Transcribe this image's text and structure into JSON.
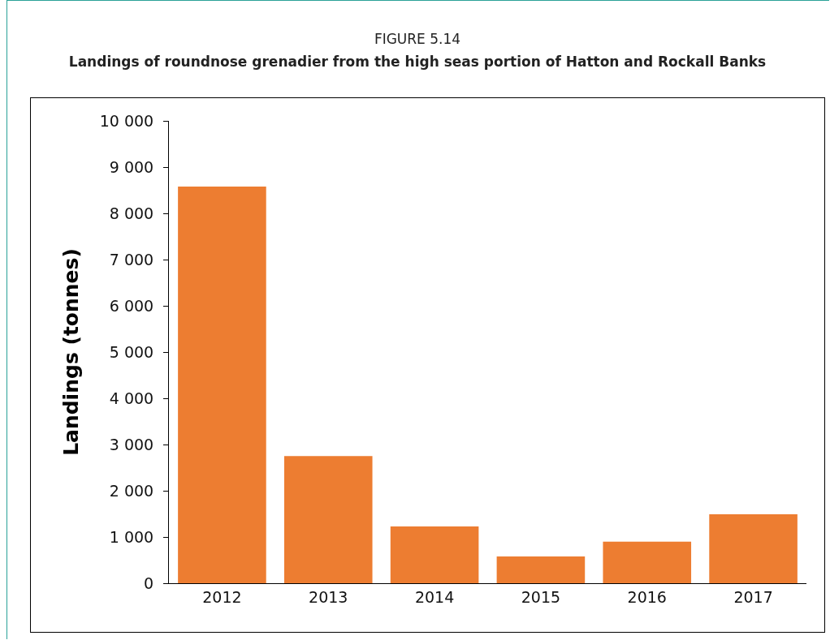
{
  "chart_data": {
    "type": "bar",
    "title": "FIGURE 5.14",
    "subtitle": "Landings of roundnose grenadier from the high seas portion of Hatton and Rockall Banks",
    "ylabel": "Landings (tonnes)",
    "categories": [
      "2012",
      "2013",
      "2014",
      "2015",
      "2016",
      "2017"
    ],
    "values": [
      8580,
      2750,
      1230,
      580,
      900,
      1490
    ],
    "color": "#ed7d31",
    "ylim": [
      0,
      10000
    ],
    "yticks": [
      0,
      {
        "value": 1000,
        "label": "1 000"
      },
      {
        "value": 2000,
        "label": "2 000"
      },
      {
        "value": 3000,
        "label": "3 000"
      },
      {
        "value": 4000,
        "label": "4 000"
      },
      {
        "value": 5000,
        "label": "5 000"
      },
      {
        "value": 6000,
        "label": "6 000"
      },
      {
        "value": 7000,
        "label": "7 000"
      },
      {
        "value": 8000,
        "label": "8 000"
      },
      {
        "value": 9000,
        "label": "9 000"
      },
      {
        "value": 10000,
        "label": "10 000"
      }
    ],
    "grid": false
  }
}
